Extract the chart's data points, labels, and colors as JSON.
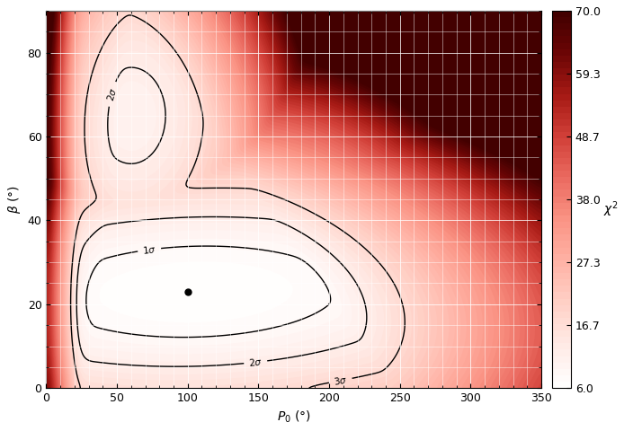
{
  "xlabel": "P_0 (\\u00b0)",
  "ylabel": "\\u03b2 (\\u00b0)",
  "colorbar_label": "\\u03c7\\u00b2",
  "xlim": [
    0,
    350
  ],
  "ylim": [
    0,
    90
  ],
  "xticks": [
    0,
    50,
    100,
    150,
    200,
    250,
    300,
    350
  ],
  "yticks": [
    0,
    20,
    40,
    60,
    80
  ],
  "cbar_ticks": [
    6.0,
    16.7,
    27.3,
    38.0,
    48.7,
    59.3,
    70.0
  ],
  "vmin": 6.0,
  "vmax": 70.0,
  "chi2_min": 6.0,
  "best_x": 100.0,
  "best_y": 23.0,
  "delta_1sig": 2.3,
  "delta_2sig": 6.17,
  "delta_3sig": 11.83,
  "background_color": "#ffffff"
}
